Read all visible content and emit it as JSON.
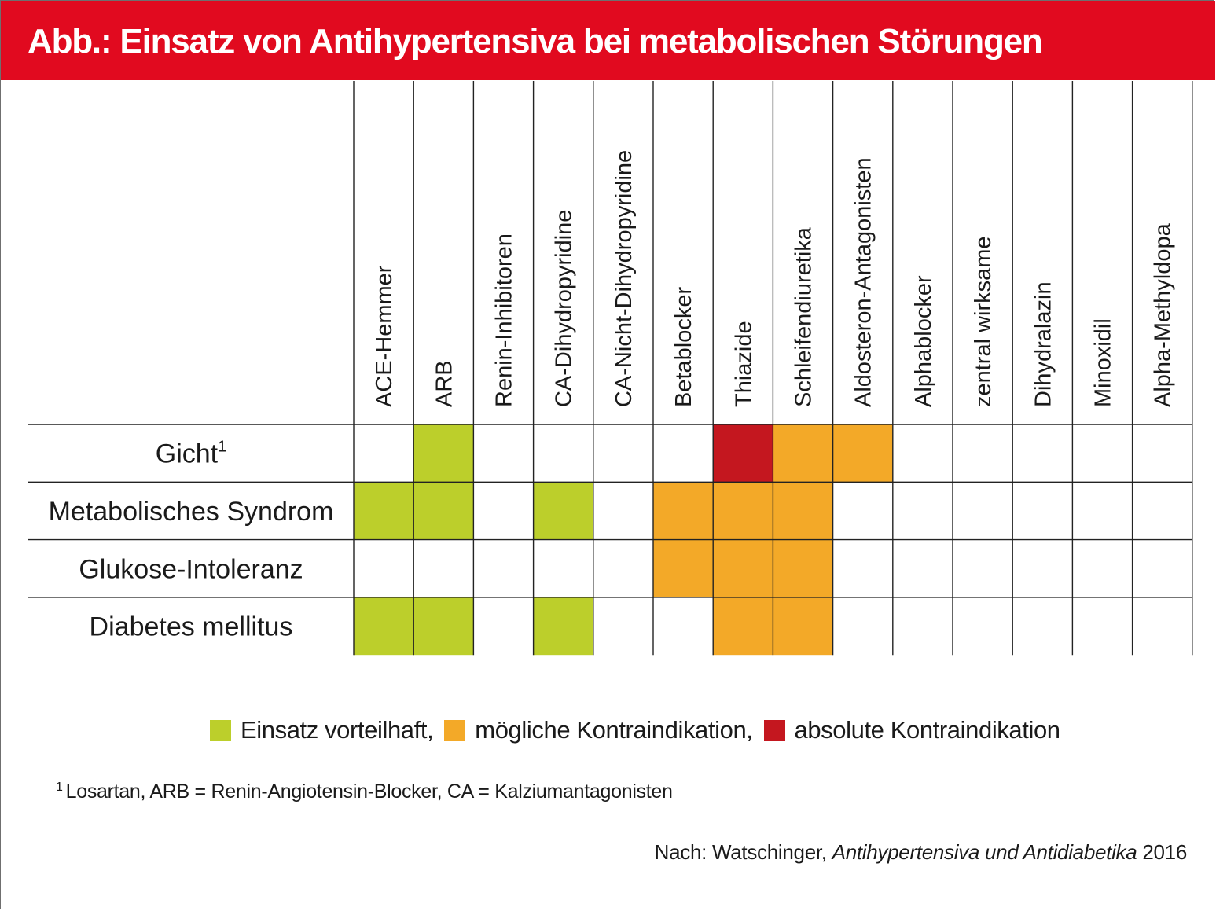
{
  "title": "Abb.: Einsatz von Antihypertensiva bei metabolischen Störungen",
  "colors": {
    "header_red": "#e10a1f",
    "vorteilhaft": "#bccf2b",
    "moeglich": "#f3a928",
    "absolut": "#c4171f",
    "grid": "#222222"
  },
  "chart_data": {
    "type": "table",
    "columns": [
      "ACE-Hemmer",
      "ARB",
      "Renin-Inhibitoren",
      "CA-Dihydropyridine",
      "CA-Nicht-Dihydropyridine",
      "Betablocker",
      "Thiazide",
      "Schleifendiuretika",
      "Aldosteron-Antagonisten",
      "Alphablocker",
      "zentral wirksame",
      "Dihydralazin",
      "Minoxidil",
      "Alpha-Methyldopa"
    ],
    "rows": [
      {
        "label": "Gicht",
        "sup": "1",
        "cells": [
          "",
          "vorteilhaft",
          "",
          "",
          "",
          "",
          "absolut",
          "moeglich",
          "moeglich",
          "",
          "",
          "",
          "",
          ""
        ]
      },
      {
        "label": "Metabolisches Syndrom",
        "sup": "",
        "cells": [
          "vorteilhaft",
          "vorteilhaft",
          "",
          "vorteilhaft",
          "",
          "moeglich",
          "moeglich",
          "moeglich",
          "",
          "",
          "",
          "",
          "",
          ""
        ]
      },
      {
        "label": "Glukose-Intoleranz",
        "sup": "",
        "cells": [
          "",
          "",
          "",
          "",
          "",
          "moeglich",
          "moeglich",
          "moeglich",
          "",
          "",
          "",
          "",
          "",
          ""
        ]
      },
      {
        "label": "Diabetes mellitus",
        "sup": "",
        "cells": [
          "vorteilhaft",
          "vorteilhaft",
          "",
          "vorteilhaft",
          "",
          "",
          "moeglich",
          "moeglich",
          "",
          "",
          "",
          "",
          "",
          ""
        ]
      }
    ],
    "legend": [
      {
        "key": "vorteilhaft",
        "label": "Einsatz vorteilhaft,"
      },
      {
        "key": "moeglich",
        "label": "mögliche Kontraindikation,"
      },
      {
        "key": "absolut",
        "label": "absolute Kontraindikation"
      }
    ]
  },
  "footnote": {
    "mark": "1",
    "text": "Losartan, ARB = Renin-Angiotensin-Blocker, CA = Kalziumantagonisten"
  },
  "source": {
    "prefix": "Nach: Watschinger, ",
    "italic": "Antihypertensiva und Antidiabetika",
    "suffix": " 2016"
  }
}
